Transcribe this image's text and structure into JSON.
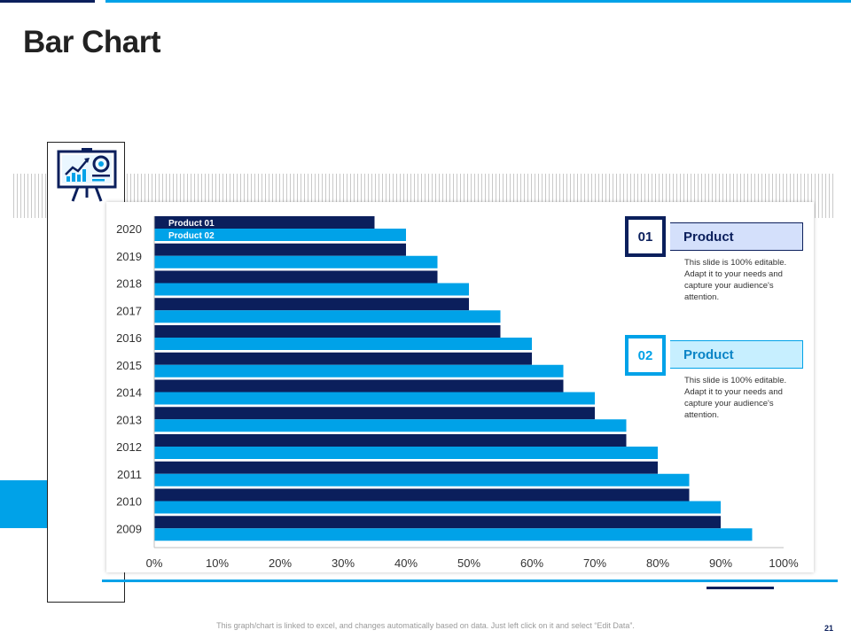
{
  "slide": {
    "title": "Bar Chart",
    "footer": "This graph/chart is linked to excel, and changes automatically based on data. Just left click on it and select “Edit Data”.",
    "page_number": "21"
  },
  "colors": {
    "dark_navy": "#0b1f5c",
    "accent_blue": "#00a2e8",
    "product01_bar": "#0b1f5c",
    "product02_bar": "#00a2e8"
  },
  "icons": {
    "presentation": "presentation-board-icon"
  },
  "cards": [
    {
      "number": "01",
      "title": "Product",
      "text": "This slide is 100% editable.  Adapt it to your needs and capture your audience's attention."
    },
    {
      "number": "02",
      "title": "Product",
      "text": "This slide is 100% editable.  Adapt it to your needs and capture your audience's attention."
    }
  ],
  "chart_data": {
    "type": "bar",
    "orientation": "horizontal",
    "title": "",
    "xlabel": "",
    "ylabel": "",
    "categories": [
      "2020",
      "2019",
      "2018",
      "2017",
      "2016",
      "2015",
      "2014",
      "2013",
      "2012",
      "2011",
      "2010",
      "2009"
    ],
    "series": [
      {
        "name": "Product 01",
        "values": [
          0.35,
          0.4,
          0.45,
          0.5,
          0.55,
          0.6,
          0.65,
          0.7,
          0.75,
          0.8,
          0.85,
          0.9
        ]
      },
      {
        "name": "Product 02",
        "values": [
          0.4,
          0.45,
          0.5,
          0.55,
          0.6,
          0.65,
          0.7,
          0.75,
          0.8,
          0.85,
          0.9,
          0.95
        ]
      }
    ],
    "xlim": [
      0,
      1
    ],
    "x_ticks": [
      "0%",
      "10%",
      "20%",
      "30%",
      "40%",
      "50%",
      "60%",
      "70%",
      "80%",
      "90%",
      "100%"
    ],
    "grid": false,
    "legend": "inside-top-left"
  }
}
